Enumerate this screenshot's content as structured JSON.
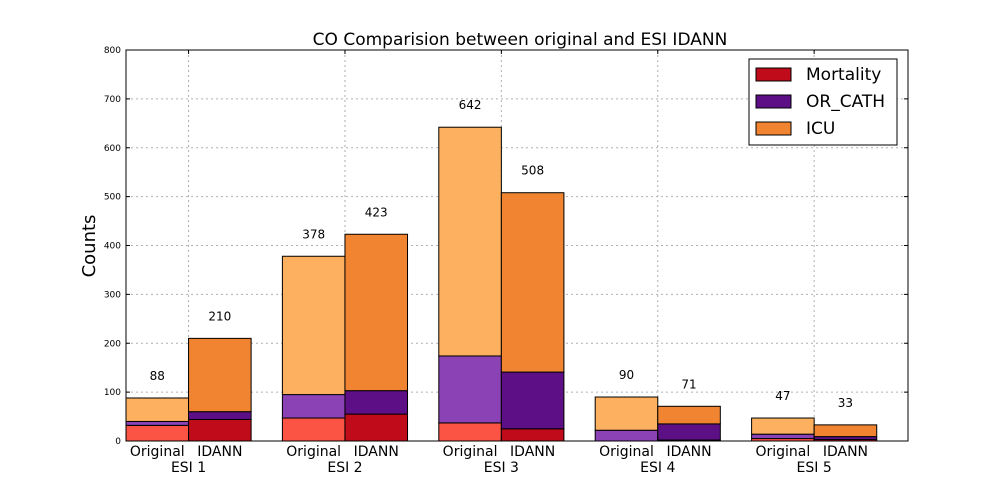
{
  "chart_data": {
    "type": "bar",
    "title": "CO Comparision between original and ESI IDANN",
    "ylabel": "Counts",
    "xlabel": "",
    "ylim": [
      0,
      800
    ],
    "yticks": [
      0,
      100,
      200,
      300,
      400,
      500,
      600,
      700,
      800
    ],
    "grid": true,
    "legend_position": "top-right",
    "groups": [
      "ESI 1",
      "ESI 2",
      "ESI 3",
      "ESI 4",
      "ESI 5"
    ],
    "sub_categories": [
      "Original",
      "IDANN"
    ],
    "series": [
      {
        "name": "Mortality",
        "legend_color": "#c00b1a",
        "original_color": "#fb5445",
        "idann_color": "#c00b1a",
        "original": [
          32,
          47,
          37,
          0,
          5
        ],
        "idann": [
          44,
          55,
          25,
          2,
          3
        ]
      },
      {
        "name": "OR_CATH",
        "legend_color": "#5d0f86",
        "original_color": "#8a42b5",
        "idann_color": "#5d0f86",
        "original": [
          8,
          48,
          137,
          22,
          9
        ],
        "idann": [
          16,
          48,
          116,
          33,
          6
        ]
      },
      {
        "name": "ICU",
        "legend_color": "#f08431",
        "original_color": "#fdb05f",
        "idann_color": "#f08431",
        "original": [
          48,
          283,
          468,
          68,
          33
        ],
        "idann": [
          150,
          320,
          367,
          36,
          24
        ]
      }
    ],
    "totals": {
      "original": [
        88,
        378,
        642,
        90,
        47
      ],
      "idann": [
        210,
        423,
        508,
        71,
        33
      ]
    },
    "total_labels": {
      "original": [
        "88",
        "378",
        "642",
        "90",
        "47"
      ],
      "idann": [
        "210",
        "423",
        "508",
        "71",
        "33"
      ]
    }
  }
}
